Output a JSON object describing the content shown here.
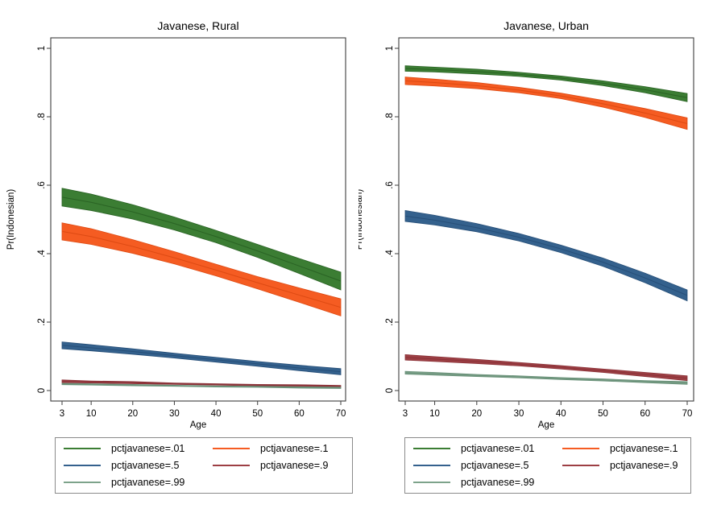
{
  "figure": {
    "background": "#ffffff",
    "text_color": "#000000",
    "axis_color": "#3d3d3d",
    "legend_border_color": "#8a8a8a"
  },
  "chart_data": [
    {
      "type": "line",
      "title": "Javanese, Rural",
      "xlabel": "Age",
      "ylabel": "Pr(Indonesian)",
      "x": [
        3,
        10,
        20,
        30,
        40,
        50,
        60,
        70
      ],
      "xtick_labels": [
        "3",
        "10",
        "20",
        "30",
        "40",
        "50",
        "60",
        "70"
      ],
      "yticks": [
        0,
        0.2,
        0.4,
        0.6,
        0.8,
        1
      ],
      "ytick_labels": [
        "0",
        ".2",
        ".4",
        ".6",
        ".8",
        "1"
      ],
      "xlim": [
        3,
        70
      ],
      "ylim": [
        0,
        1
      ],
      "grid": false,
      "legend_position": "below",
      "band_style": "confidence-interval",
      "series": [
        {
          "name": "pctjavanese=.01",
          "color": "#3b7d33",
          "line_color": "#2a6324",
          "values": [
            0.565,
            0.55,
            0.522,
            0.488,
            0.45,
            0.408,
            0.364,
            0.32
          ],
          "ci_half": [
            0.026,
            0.024,
            0.021,
            0.019,
            0.018,
            0.019,
            0.022,
            0.026
          ]
        },
        {
          "name": "pctjavanese=.1",
          "color": "#f55c22",
          "line_color": "#dd4a13",
          "values": [
            0.465,
            0.45,
            0.421,
            0.388,
            0.352,
            0.315,
            0.279,
            0.243
          ],
          "ci_half": [
            0.025,
            0.023,
            0.02,
            0.018,
            0.017,
            0.018,
            0.021,
            0.025
          ]
        },
        {
          "name": "pctjavanese=.5",
          "color": "#34618d",
          "line_color": "#274f78",
          "values": [
            0.132,
            0.125,
            0.114,
            0.102,
            0.09,
            0.078,
            0.066,
            0.055
          ],
          "ci_half": [
            0.01,
            0.009,
            0.008,
            0.007,
            0.007,
            0.007,
            0.008,
            0.009
          ]
        },
        {
          "name": "pctjavanese=.9",
          "color": "#9d3f44",
          "line_color": "#8a3238",
          "values": [
            0.027,
            0.025,
            0.023,
            0.02,
            0.018,
            0.016,
            0.014,
            0.012
          ],
          "ci_half": [
            0.004,
            0.003,
            0.003,
            0.002,
            0.002,
            0.002,
            0.003,
            0.003
          ]
        },
        {
          "name": "pctjavanese=.99",
          "color": "#7da38b",
          "line_color": "#699078",
          "values": [
            0.019,
            0.018,
            0.016,
            0.014,
            0.012,
            0.011,
            0.009,
            0.008
          ],
          "ci_half": [
            0.002,
            0.002,
            0.002,
            0.0015,
            0.0015,
            0.0015,
            0.002,
            0.002
          ]
        }
      ]
    },
    {
      "type": "line",
      "title": "Javanese, Urban",
      "xlabel": "Age",
      "ylabel": "Pr(Indonesian)",
      "x": [
        3,
        10,
        20,
        30,
        40,
        50,
        60,
        70
      ],
      "xtick_labels": [
        "3",
        "10",
        "20",
        "30",
        "40",
        "50",
        "60",
        "70"
      ],
      "yticks": [
        0,
        0.2,
        0.4,
        0.6,
        0.8,
        1
      ],
      "ytick_labels": [
        "0",
        ".2",
        ".4",
        ".6",
        ".8",
        "1"
      ],
      "xlim": [
        3,
        70
      ],
      "ylim": [
        0,
        1
      ],
      "grid": false,
      "legend_position": "below",
      "band_style": "confidence-interval",
      "series": [
        {
          "name": "pctjavanese=.01",
          "color": "#3b7d33",
          "line_color": "#2a6324",
          "values": [
            0.941,
            0.938,
            0.932,
            0.924,
            0.913,
            0.898,
            0.879,
            0.856
          ],
          "ci_half": [
            0.008,
            0.007,
            0.007,
            0.006,
            0.006,
            0.007,
            0.009,
            0.012
          ]
        },
        {
          "name": "pctjavanese=.1",
          "color": "#f55c22",
          "line_color": "#dd4a13",
          "values": [
            0.905,
            0.9,
            0.891,
            0.878,
            0.861,
            0.838,
            0.811,
            0.78
          ],
          "ci_half": [
            0.011,
            0.01,
            0.009,
            0.008,
            0.008,
            0.01,
            0.013,
            0.017
          ]
        },
        {
          "name": "pctjavanese=.5",
          "color": "#34618d",
          "line_color": "#274f78",
          "values": [
            0.51,
            0.498,
            0.476,
            0.448,
            0.414,
            0.375,
            0.329,
            0.278
          ],
          "ci_half": [
            0.016,
            0.014,
            0.012,
            0.011,
            0.011,
            0.012,
            0.014,
            0.016
          ]
        },
        {
          "name": "pctjavanese=.9",
          "color": "#9d3f44",
          "line_color": "#8a3238",
          "values": [
            0.097,
            0.092,
            0.085,
            0.077,
            0.068,
            0.058,
            0.047,
            0.036
          ],
          "ci_half": [
            0.008,
            0.007,
            0.006,
            0.005,
            0.005,
            0.005,
            0.006,
            0.007
          ]
        },
        {
          "name": "pctjavanese=.99",
          "color": "#7da38b",
          "line_color": "#699078",
          "values": [
            0.052,
            0.049,
            0.044,
            0.04,
            0.035,
            0.031,
            0.026,
            0.022
          ],
          "ci_half": [
            0.004,
            0.004,
            0.003,
            0.003,
            0.003,
            0.003,
            0.003,
            0.004
          ]
        }
      ]
    }
  ]
}
